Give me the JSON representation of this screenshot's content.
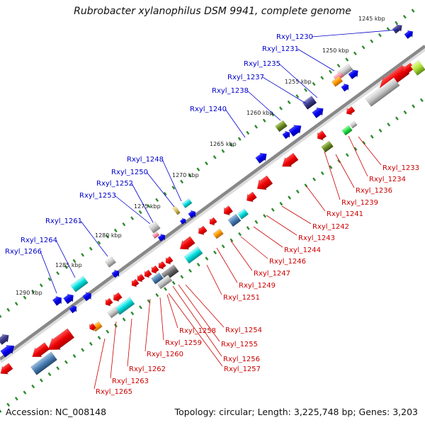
{
  "title": "Rubrobacter xylanophilus DSM 9941, complete genome",
  "accession": "Accession: NC_008148",
  "topology": "Topology: circular; Length: 3,225,748 bp; Genes: 3,203",
  "colors": {
    "forward_label": "#0000cc",
    "reverse_label": "#cc0000",
    "backbone": "#888888",
    "tick": "#2e8b2e"
  },
  "kbp_ticks": [
    "1245 kbp",
    "1250 kbp",
    "1255 kbp",
    "1260 kbp",
    "1265 kbp",
    "1270 kbp",
    "1275 kbp",
    "1280 kbp",
    "1285 kbp",
    "1290 kbp"
  ],
  "forward_labels": [
    "Rxyl_1230",
    "Rxyl_1231",
    "Rxyl_1235",
    "Rxyl_1237",
    "Rxyl_1238",
    "Rxyl_1240",
    "Rxyl_1248",
    "Rxyl_1250",
    "Rxyl_1252",
    "Rxyl_1253",
    "Rxyl_1261",
    "Rxyl_1264",
    "Rxyl_1266"
  ],
  "reverse_labels": [
    "Rxyl_1233",
    "Rxyl_1234",
    "Rxyl_1236",
    "Rxyl_1239",
    "Rxyl_1241",
    "Rxyl_1242",
    "Rxyl_1243",
    "Rxyl_1244",
    "Rxyl_1246",
    "Rxyl_1247",
    "Rxyl_1249",
    "Rxyl_1251",
    "Rxyl_1254",
    "Rxyl_1255",
    "Rxyl_1256",
    "Rxyl_1257",
    "Rxyl_1258",
    "Rxyl_1259",
    "Rxyl_1260",
    "Rxyl_1262",
    "Rxyl_1263",
    "Rxyl_1265"
  ]
}
